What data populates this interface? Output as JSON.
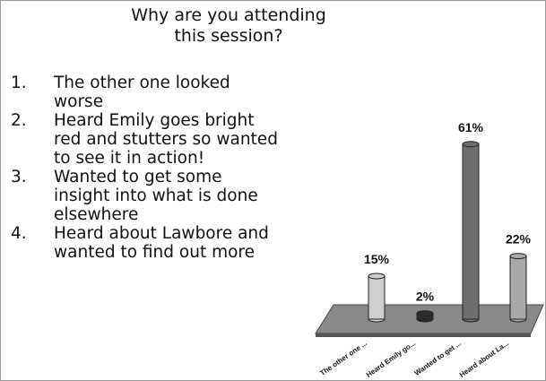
{
  "title": "Why are you attending this session?",
  "list": [
    {
      "number": "1.",
      "text": "The other one looked worse"
    },
    {
      "number": "2.",
      "text": "Heard Emily goes bright red and stutters so wanted to see it in action!"
    },
    {
      "number": "3.",
      "text": "Wanted to get some insight into what is done elsewhere"
    },
    {
      "number": "4.",
      "text": "Heard about Lawbore and wanted to find out more"
    }
  ],
  "chart_data": {
    "type": "bar",
    "categories": [
      "The other one ...",
      "Heard Emily go...",
      "Wanted to get ...",
      "Heard about La..."
    ],
    "values": [
      15,
      2,
      61,
      22
    ],
    "value_labels": [
      "15%",
      "2%",
      "61%",
      "22%"
    ],
    "colors": [
      "#cfcfcf",
      "#2e2e2e",
      "#6e6e6e",
      "#a9a9a9"
    ]
  }
}
